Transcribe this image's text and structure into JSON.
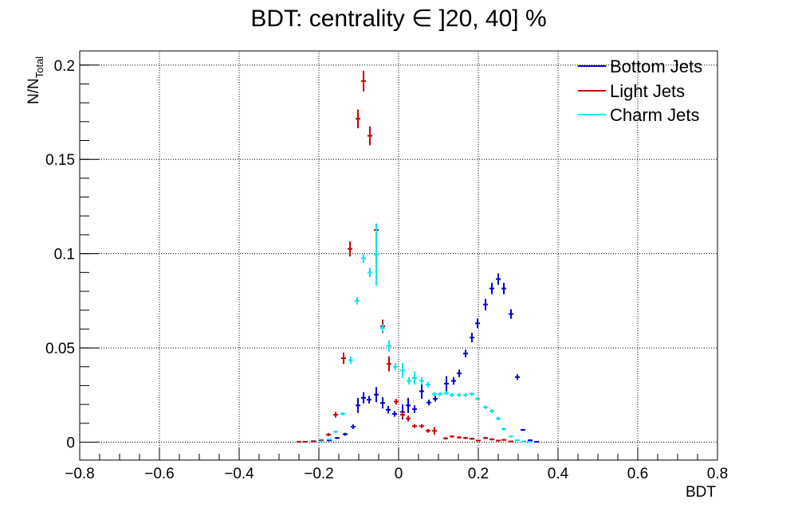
{
  "chart_data": {
    "type": "scatter",
    "title": "BDT: centrality ∈ ]20, 40] %",
    "xlabel": "BDT",
    "ylabel": "N/N",
    "ylabel_sub": "Total",
    "xlim": [
      -0.8,
      0.8
    ],
    "ylim": [
      -0.0095,
      0.2075
    ],
    "grid": true,
    "legend_position": "top-right",
    "x_ticks": [
      -0.8,
      -0.6,
      -0.4,
      -0.2,
      0,
      0.2,
      0.4,
      0.6,
      0.8
    ],
    "x_tick_labels": [
      "−0.8",
      "−0.6",
      "−0.4",
      "−0.2",
      "0",
      "0.2",
      "0.4",
      "0.6",
      "0.8"
    ],
    "y_ticks": [
      0,
      0.05,
      0.1,
      0.15,
      0.2
    ],
    "y_tick_labels": [
      "0",
      "0.05",
      "0.1",
      "0.15",
      "0.2"
    ],
    "bin_half_width": 0.006,
    "series": [
      {
        "name": "Bottom Jets",
        "color": "#0000cc",
        "points": [
          {
            "x": -0.213,
            "y": 0.0005,
            "e": 0.0003
          },
          {
            "x": -0.194,
            "y": 0.0008,
            "e": 0.0003
          },
          {
            "x": -0.174,
            "y": 0.0009,
            "e": 0.0004
          },
          {
            "x": -0.154,
            "y": 0.0022,
            "e": 0.0005
          },
          {
            "x": -0.134,
            "y": 0.0042,
            "e": 0.0008
          },
          {
            "x": -0.114,
            "y": 0.0082,
            "e": 0.0012
          },
          {
            "x": -0.102,
            "y": 0.0195,
            "e": 0.004
          },
          {
            "x": -0.088,
            "y": 0.0235,
            "e": 0.003
          },
          {
            "x": -0.074,
            "y": 0.0225,
            "e": 0.002
          },
          {
            "x": -0.056,
            "y": 0.0252,
            "e": 0.004
          },
          {
            "x": -0.04,
            "y": 0.0208,
            "e": 0.003
          },
          {
            "x": -0.026,
            "y": 0.0172,
            "e": 0.002
          },
          {
            "x": -0.01,
            "y": 0.015,
            "e": 0.0015
          },
          {
            "x": 0.01,
            "y": 0.016,
            "e": 0.004
          },
          {
            "x": 0.024,
            "y": 0.0195,
            "e": 0.004
          },
          {
            "x": 0.04,
            "y": 0.0175,
            "e": 0.002
          },
          {
            "x": 0.058,
            "y": 0.027,
            "e": 0.004
          },
          {
            "x": 0.076,
            "y": 0.021,
            "e": 0.0015
          },
          {
            "x": 0.092,
            "y": 0.023,
            "e": 0.0015
          },
          {
            "x": 0.12,
            "y": 0.031,
            "e": 0.004
          },
          {
            "x": 0.138,
            "y": 0.0325,
            "e": 0.002
          },
          {
            "x": 0.152,
            "y": 0.0365,
            "e": 0.002
          },
          {
            "x": 0.168,
            "y": 0.047,
            "e": 0.002
          },
          {
            "x": 0.184,
            "y": 0.0555,
            "e": 0.0025
          },
          {
            "x": 0.198,
            "y": 0.063,
            "e": 0.0025
          },
          {
            "x": 0.218,
            "y": 0.073,
            "e": 0.003
          },
          {
            "x": 0.234,
            "y": 0.0815,
            "e": 0.003
          },
          {
            "x": 0.25,
            "y": 0.0865,
            "e": 0.003
          },
          {
            "x": 0.264,
            "y": 0.0815,
            "e": 0.003
          },
          {
            "x": 0.282,
            "y": 0.068,
            "e": 0.0025
          },
          {
            "x": 0.298,
            "y": 0.0345,
            "e": 0.0015
          },
          {
            "x": 0.312,
            "y": 0.0065,
            "e": 0.0005
          },
          {
            "x": 0.33,
            "y": 0.001,
            "e": 0.0003
          },
          {
            "x": 0.346,
            "y": 0.0002,
            "e": 0.0002
          }
        ]
      },
      {
        "name": "Light Jets",
        "color": "#cc0000",
        "points": [
          {
            "x": -0.25,
            "y": 0.0002,
            "e": 0.0002
          },
          {
            "x": -0.234,
            "y": 0.0002,
            "e": 0.0002
          },
          {
            "x": -0.214,
            "y": 0.0004,
            "e": 0.0003
          },
          {
            "x": -0.194,
            "y": 0.001,
            "e": 0.0004
          },
          {
            "x": -0.176,
            "y": 0.004,
            "e": 0.0008
          },
          {
            "x": -0.158,
            "y": 0.0145,
            "e": 0.0015
          },
          {
            "x": -0.138,
            "y": 0.0445,
            "e": 0.003
          },
          {
            "x": -0.122,
            "y": 0.1025,
            "e": 0.004
          },
          {
            "x": -0.102,
            "y": 0.1715,
            "e": 0.005
          },
          {
            "x": -0.088,
            "y": 0.1915,
            "e": 0.0055
          },
          {
            "x": -0.072,
            "y": 0.1625,
            "e": 0.005
          },
          {
            "x": -0.056,
            "y": 0.1125,
            "e": 0.003
          },
          {
            "x": -0.04,
            "y": 0.0615,
            "e": 0.0035
          },
          {
            "x": -0.024,
            "y": 0.0415,
            "e": 0.004
          },
          {
            "x": -0.006,
            "y": 0.0215,
            "e": 0.0015
          },
          {
            "x": 0.01,
            "y": 0.0145,
            "e": 0.0015
          },
          {
            "x": 0.024,
            "y": 0.0125,
            "e": 0.0015
          },
          {
            "x": 0.04,
            "y": 0.0085,
            "e": 0.001
          },
          {
            "x": 0.058,
            "y": 0.0085,
            "e": 0.001
          },
          {
            "x": 0.074,
            "y": 0.006,
            "e": 0.001
          },
          {
            "x": 0.09,
            "y": 0.006,
            "e": 0.002
          },
          {
            "x": 0.118,
            "y": 0.002,
            "e": 0.0006
          },
          {
            "x": 0.134,
            "y": 0.003,
            "e": 0.0006
          },
          {
            "x": 0.152,
            "y": 0.0025,
            "e": 0.0006
          },
          {
            "x": 0.168,
            "y": 0.0022,
            "e": 0.0006
          },
          {
            "x": 0.184,
            "y": 0.0018,
            "e": 0.0006
          },
          {
            "x": 0.2,
            "y": 0.0008,
            "e": 0.0004
          },
          {
            "x": 0.218,
            "y": 0.0022,
            "e": 0.0006
          },
          {
            "x": 0.234,
            "y": 0.0015,
            "e": 0.0006
          },
          {
            "x": 0.25,
            "y": 0.0008,
            "e": 0.0004
          },
          {
            "x": 0.264,
            "y": 0.0012,
            "e": 0.0004
          },
          {
            "x": 0.282,
            "y": 0.0004,
            "e": 0.0003
          }
        ]
      },
      {
        "name": "Charm Jets",
        "color": "#00e6ee",
        "points": [
          {
            "x": -0.194,
            "y": 0.0004,
            "e": 0.0003
          },
          {
            "x": -0.174,
            "y": 0.0015,
            "e": 0.0004
          },
          {
            "x": -0.158,
            "y": 0.0055,
            "e": 0.0006
          },
          {
            "x": -0.14,
            "y": 0.015,
            "e": 0.0008
          },
          {
            "x": -0.12,
            "y": 0.0435,
            "e": 0.002
          },
          {
            "x": -0.104,
            "y": 0.075,
            "e": 0.002
          },
          {
            "x": -0.088,
            "y": 0.0975,
            "e": 0.0025
          },
          {
            "x": -0.072,
            "y": 0.09,
            "e": 0.0025
          },
          {
            "x": -0.056,
            "y": 0.0995,
            "e": 0.0165
          },
          {
            "x": -0.04,
            "y": 0.0605,
            "e": 0.002
          },
          {
            "x": -0.024,
            "y": 0.051,
            "e": 0.003
          },
          {
            "x": -0.008,
            "y": 0.04,
            "e": 0.002
          },
          {
            "x": 0.01,
            "y": 0.038,
            "e": 0.004
          },
          {
            "x": 0.026,
            "y": 0.0325,
            "e": 0.002
          },
          {
            "x": 0.04,
            "y": 0.034,
            "e": 0.0035
          },
          {
            "x": 0.058,
            "y": 0.0325,
            "e": 0.002
          },
          {
            "x": 0.074,
            "y": 0.0305,
            "e": 0.0015
          },
          {
            "x": 0.09,
            "y": 0.0255,
            "e": 0.001
          },
          {
            "x": 0.104,
            "y": 0.0255,
            "e": 0.001
          },
          {
            "x": 0.12,
            "y": 0.026,
            "e": 0.001
          },
          {
            "x": 0.134,
            "y": 0.025,
            "e": 0.001
          },
          {
            "x": 0.152,
            "y": 0.025,
            "e": 0.001
          },
          {
            "x": 0.168,
            "y": 0.025,
            "e": 0.001
          },
          {
            "x": 0.184,
            "y": 0.0255,
            "e": 0.001
          },
          {
            "x": 0.198,
            "y": 0.023,
            "e": 0.001
          },
          {
            "x": 0.218,
            "y": 0.0185,
            "e": 0.001
          },
          {
            "x": 0.234,
            "y": 0.0165,
            "e": 0.001
          },
          {
            "x": 0.25,
            "y": 0.0125,
            "e": 0.001
          },
          {
            "x": 0.264,
            "y": 0.007,
            "e": 0.0008
          },
          {
            "x": 0.282,
            "y": 0.003,
            "e": 0.0005
          },
          {
            "x": 0.298,
            "y": 0.001,
            "e": 0.0004
          },
          {
            "x": 0.314,
            "y": 0.0004,
            "e": 0.0003
          },
          {
            "x": 0.33,
            "y": 0.0002,
            "e": 0.0002
          }
        ]
      }
    ]
  }
}
